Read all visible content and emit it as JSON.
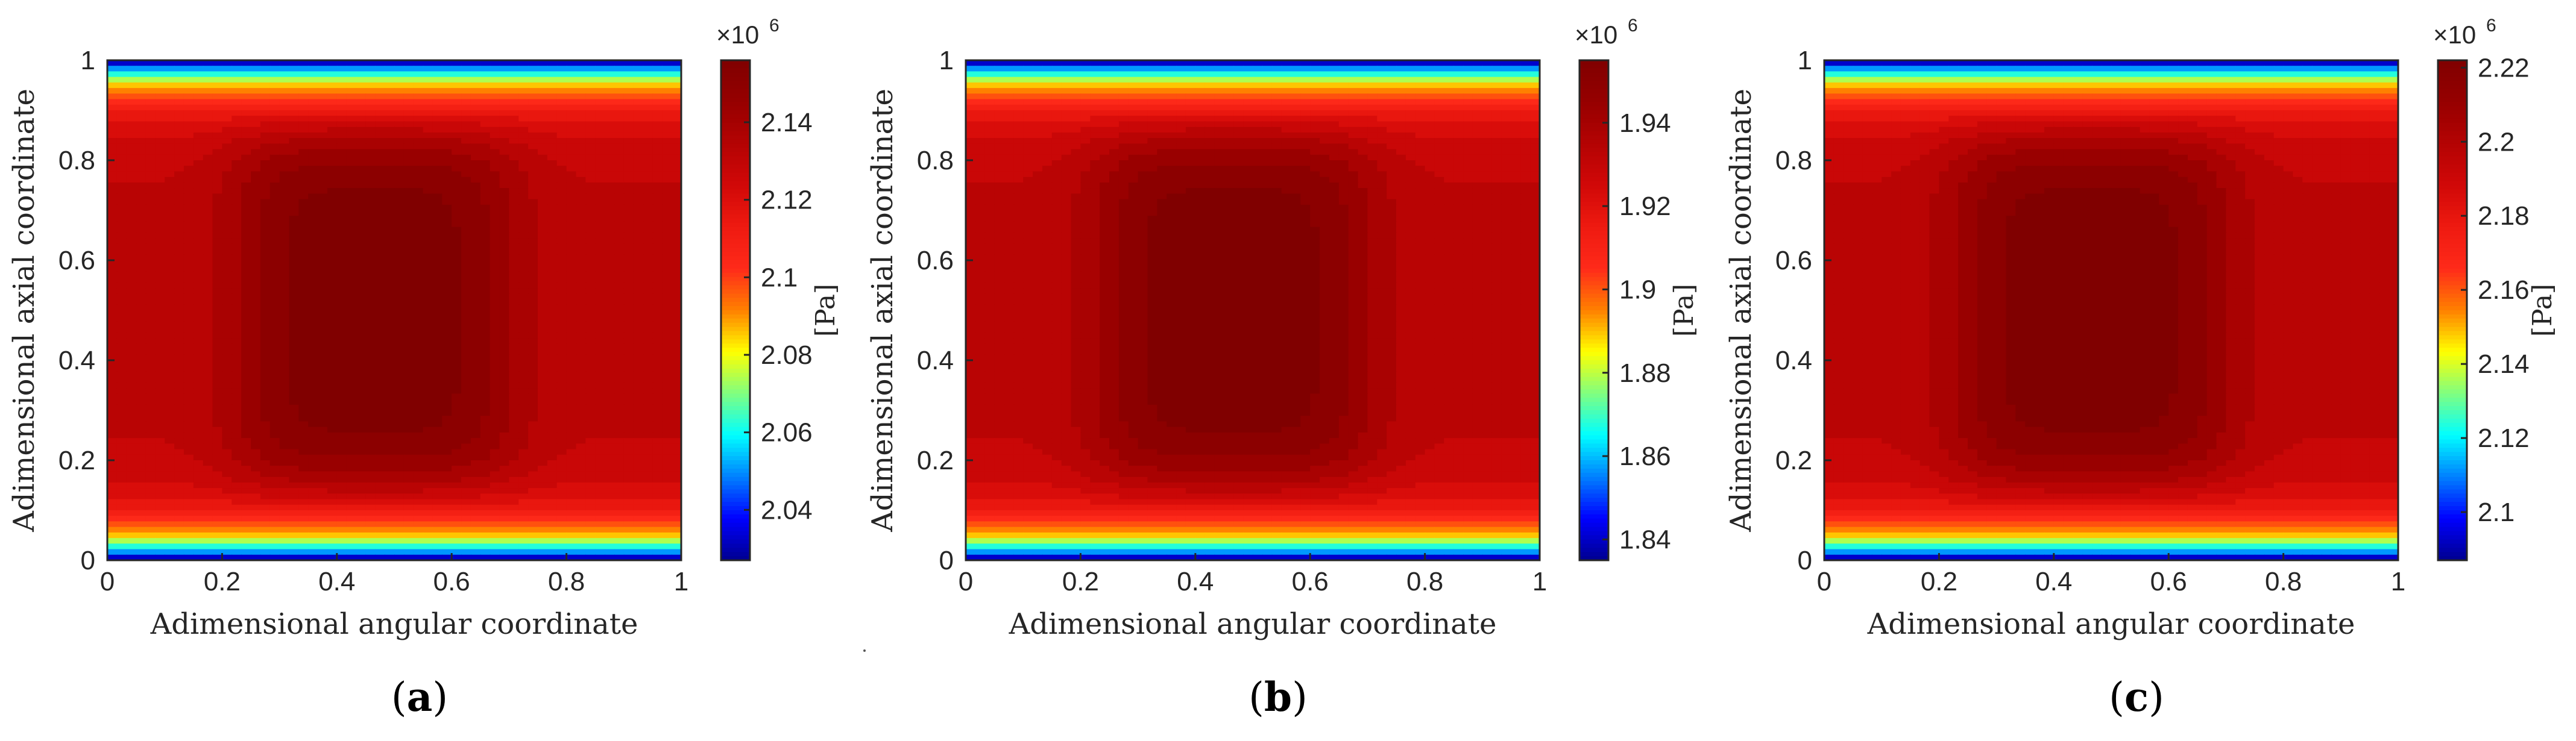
{
  "colors": {
    "map": [
      "#00008f",
      "#0000ff",
      "#0080ff",
      "#00ffff",
      "#80ff80",
      "#ffff00",
      "#ff8000",
      "#ff2a1a",
      "#ee1a10",
      "#d10808",
      "#b40303",
      "#960000",
      "#800000"
    ],
    "axis": "#262626",
    "text": "#262626"
  },
  "chart_data": [
    {
      "type": "heatmap",
      "panel_label": "a",
      "xlabel": "Adimensional angular coordinate",
      "ylabel": "Adimensional axial coordinate",
      "xlim": [
        0,
        1
      ],
      "ylim": [
        0,
        1
      ],
      "x_ticks": [
        "0",
        "0.2",
        "0.4",
        "0.6",
        "0.8",
        "1"
      ],
      "y_ticks": [
        "0",
        "0.2",
        "0.4",
        "0.6",
        "0.8",
        "1"
      ],
      "colorbar": {
        "label": "[Pa]",
        "multiplier": "×10",
        "exponent": "6",
        "range": [
          2.027,
          2.156
        ],
        "ticks": [
          2.04,
          2.06,
          2.08,
          2.1,
          2.12,
          2.14
        ],
        "tick_labels": [
          "2.04",
          "2.06",
          "2.08",
          "2.1",
          "2.12",
          "2.14"
        ]
      },
      "peak": {
        "x": 0.465,
        "y": 0.5
      }
    },
    {
      "type": "heatmap",
      "panel_label": "b",
      "xlabel": "Adimensional angular coordinate",
      "ylabel": "Adimensional axial coordinate",
      "xlim": [
        0,
        1
      ],
      "ylim": [
        0,
        1
      ],
      "x_ticks": [
        "0",
        "0.2",
        "0.4",
        "0.6",
        "0.8",
        "1"
      ],
      "y_ticks": [
        "0",
        "0.2",
        "0.4",
        "0.6",
        "0.8",
        "1"
      ],
      "colorbar": {
        "label": "[Pa]",
        "multiplier": "×10",
        "exponent": "6",
        "range": [
          1.835,
          1.955
        ],
        "ticks": [
          1.84,
          1.86,
          1.88,
          1.9,
          1.92,
          1.94
        ],
        "tick_labels": [
          "1.84",
          "1.86",
          "1.88",
          "1.9",
          "1.92",
          "1.94"
        ]
      },
      "peak": {
        "x": 0.465,
        "y": 0.5
      }
    },
    {
      "type": "heatmap",
      "panel_label": "c",
      "xlabel": "Adimensional angular coordinate",
      "ylabel": "Adimensional axial coordinate",
      "xlim": [
        0,
        1
      ],
      "ylim": [
        0,
        1
      ],
      "x_ticks": [
        "0",
        "0.2",
        "0.4",
        "0.6",
        "0.8",
        "1"
      ],
      "y_ticks": [
        "0",
        "0.2",
        "0.4",
        "0.6",
        "0.8",
        "1"
      ],
      "colorbar": {
        "label": "[Pa]",
        "multiplier": "×10",
        "exponent": "6",
        "range": [
          2.087,
          2.222
        ],
        "ticks": [
          2.1,
          2.12,
          2.14,
          2.16,
          2.18,
          2.2,
          2.22
        ],
        "tick_labels": [
          "2.1",
          "2.12",
          "2.14",
          "2.16",
          "2.18",
          "2.2",
          "2.22"
        ]
      },
      "peak": {
        "x": 0.465,
        "y": 0.5
      }
    }
  ]
}
